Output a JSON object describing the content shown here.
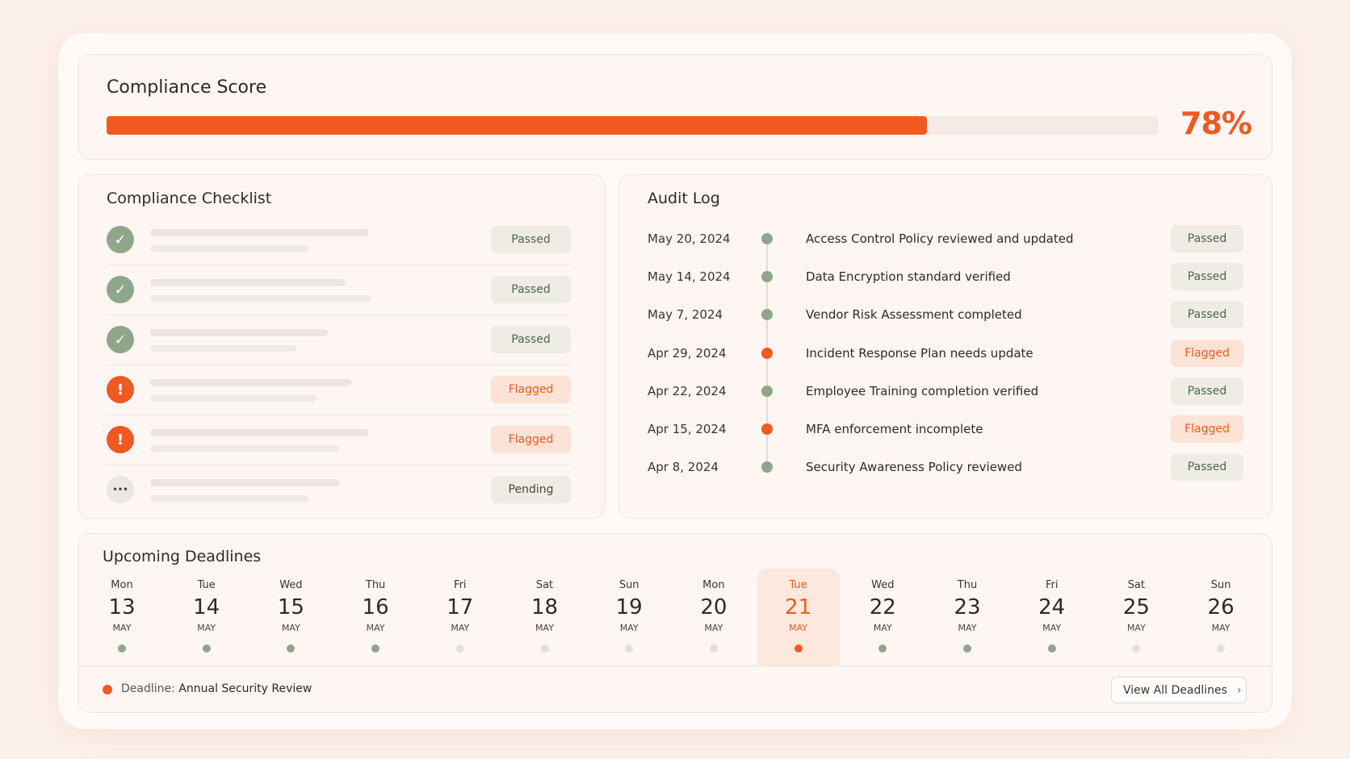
{
  "score": {
    "title": "Compliance Score",
    "value": 78,
    "label": "78%",
    "color": "#f05a22"
  },
  "checklist": {
    "title": "Compliance Checklist",
    "items": [
      {
        "status": "Passed",
        "icon": "check",
        "color": "#8fa68a"
      },
      {
        "status": "Passed",
        "icon": "check",
        "color": "#8fa68a"
      },
      {
        "status": "Passed",
        "icon": "check",
        "color": "#8fa68a"
      },
      {
        "status": "Flagged",
        "icon": "alert",
        "color": "#f05a22"
      },
      {
        "status": "Flagged",
        "icon": "alert",
        "color": "#f05a22"
      },
      {
        "status": "Pending",
        "icon": "more",
        "color": "#9a948f"
      }
    ]
  },
  "audit_log": {
    "title": "Audit Log",
    "entries": [
      {
        "date": "May 20, 2024",
        "text": "Access Control Policy reviewed and updated",
        "status": "Passed",
        "color": "#8fa68a"
      },
      {
        "date": "May 14, 2024",
        "text": "Data Encryption standard verified",
        "status": "Passed",
        "color": "#8fa68a"
      },
      {
        "date": "May 7, 2024",
        "text": "Vendor Risk Assessment completed",
        "status": "Passed",
        "color": "#8fa68a"
      },
      {
        "date": "Apr 29, 2024",
        "text": "Incident Response Plan needs update",
        "status": "Flagged",
        "color": "#f05a22"
      },
      {
        "date": "Apr 22, 2024",
        "text": "Employee Training completion verified",
        "status": "Passed",
        "color": "#8fa68a"
      },
      {
        "date": "Apr 15, 2024",
        "text": "MFA enforcement incomplete",
        "status": "Flagged",
        "color": "#f05a22"
      },
      {
        "date": "Apr 8, 2024",
        "text": "Security Awareness Policy reviewed",
        "status": "Passed",
        "color": "#8fa68a"
      }
    ]
  },
  "deadlines": {
    "title": "Upcoming Deadlines",
    "selected": 8,
    "days": [
      {
        "weekday": "Mon",
        "day": 13,
        "month": "MAY",
        "color": "#8fa68a"
      },
      {
        "weekday": "Tue",
        "day": 14,
        "month": "MAY",
        "color": "#8fa68a"
      },
      {
        "weekday": "Wed",
        "day": 15,
        "month": "MAY",
        "color": "#8fa68a"
      },
      {
        "weekday": "Thu",
        "day": 16,
        "month": "MAY",
        "color": "#8fa68a"
      },
      {
        "weekday": "Fri",
        "day": 17,
        "month": "MAY",
        "color": "#e4dfdb"
      },
      {
        "weekday": "Sat",
        "day": 18,
        "month": "MAY",
        "color": "#e4dfdb"
      },
      {
        "weekday": "Sun",
        "day": 19,
        "month": "MAY",
        "color": "#e4dfdb"
      },
      {
        "weekday": "Mon",
        "day": 20,
        "month": "MAY",
        "color": "#e4dfdb"
      },
      {
        "weekday": "Tue",
        "day": 21,
        "month": "MAY",
        "color": "#f05a22"
      },
      {
        "weekday": "Wed",
        "day": 22,
        "month": "MAY",
        "color": "#8fa68a"
      },
      {
        "weekday": "Thu",
        "day": 23,
        "month": "MAY",
        "color": "#8fa68a"
      },
      {
        "weekday": "Fri",
        "day": 24,
        "month": "MAY",
        "color": "#8fa68a"
      },
      {
        "weekday": "Sat",
        "day": 25,
        "month": "MAY",
        "color": "#e4dfdb"
      },
      {
        "weekday": "Sun",
        "day": 26,
        "month": "MAY",
        "color": "#e4dfdb"
      }
    ],
    "footer_label": "Deadline:",
    "footer_value": "Annual Security Review",
    "button": "View All Deadlines"
  }
}
